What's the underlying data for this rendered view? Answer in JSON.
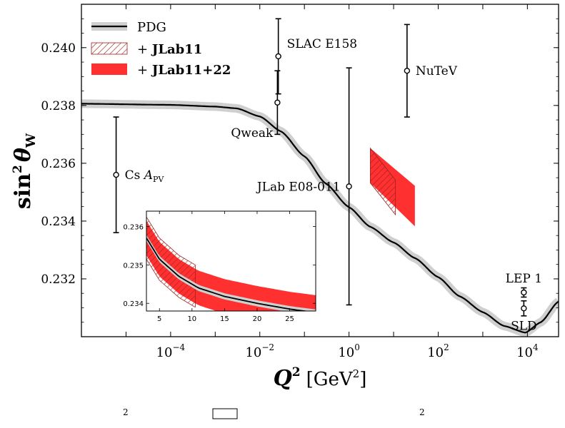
{
  "chart_data": {
    "type": "scatter",
    "title": "",
    "x_scale": "log",
    "x_range": [
      1e-06,
      50000
    ],
    "y_range": [
      0.23,
      0.2415
    ],
    "xlabel": {
      "main": "Q",
      "sup": "2",
      "unit": "[GeV",
      "unit_sup": "2",
      "unit_close": "]"
    },
    "ylabel": {
      "main": "sin",
      "sup": "2",
      "sym": "θ",
      "sub": "W"
    },
    "x_ticks": [
      {
        "value": 0.0001,
        "base": "10",
        "exp": "−4"
      },
      {
        "value": 0.01,
        "base": "10",
        "exp": "−2"
      },
      {
        "value": 1,
        "base": "10",
        "exp": "0"
      },
      {
        "value": 100,
        "base": "10",
        "exp": "2"
      },
      {
        "value": 10000,
        "base": "10",
        "exp": "4"
      }
    ],
    "y_ticks": [
      "0.232",
      "0.234",
      "0.236",
      "0.238",
      "0.240"
    ],
    "y_tick_values": [
      0.232,
      0.234,
      0.236,
      0.238,
      0.24
    ],
    "pdg_curve": [
      [
        1e-06,
        0.23806
      ],
      [
        0.0001,
        0.23802
      ],
      [
        0.001,
        0.23796
      ],
      [
        0.003,
        0.2379
      ],
      [
        0.01,
        0.23762
      ],
      [
        0.03,
        0.2371
      ],
      [
        0.1,
        0.23624
      ],
      [
        0.3,
        0.2353
      ],
      [
        1,
        0.23448
      ],
      [
        3,
        0.2338
      ],
      [
        10,
        0.23326
      ],
      [
        30,
        0.23272
      ],
      [
        100,
        0.23206
      ],
      [
        300,
        0.2314
      ],
      [
        1000,
        0.23085
      ],
      [
        3000,
        0.23037
      ],
      [
        9000,
        0.23014
      ],
      [
        20000,
        0.2305
      ],
      [
        50000,
        0.23122
      ]
    ],
    "jlab11_band": {
      "x": [
        3,
        11
      ],
      "y_low": [
        0.23532,
        0.23422
      ],
      "y_high": [
        0.23652,
        0.23542
      ]
    },
    "jlab1122_band": {
      "x": [
        3,
        30
      ],
      "y_low": [
        0.23532,
        0.23382
      ],
      "y_high": [
        0.23652,
        0.23522
      ]
    },
    "measurements": [
      {
        "name": "Cs",
        "name_var": "A",
        "name_sub": "PV",
        "x": 1e-06,
        "y": 0.2356,
        "err_low": 0.002,
        "err_high": 0.002
      },
      {
        "name": "Qweak",
        "x": 0.0248,
        "y": 0.2381,
        "err_low": 0.0011,
        "err_high": 0.0011
      },
      {
        "name": "SLAC E158",
        "x": 0.026,
        "y": 0.2397,
        "err_low": 0.0013,
        "err_high": 0.0013
      },
      {
        "name": "JLab E08-011",
        "x": 1.0,
        "y": 0.2352,
        "err_low": 0.0041,
        "err_high": 0.0041
      },
      {
        "name": "NuTeV",
        "x": 20,
        "y": 0.2392,
        "err_low": 0.0016,
        "err_high": 0.0016
      },
      {
        "name": "LEP 1",
        "x": 8315,
        "y": 0.23153,
        "err_low": 0.00016,
        "err_high": 0.00016
      },
      {
        "name": "SLD",
        "x": 8315,
        "y": 0.23098,
        "err_low": 0.00026,
        "err_high": 0.00026
      }
    ],
    "legend": {
      "position": "top-left",
      "entries": [
        {
          "label": "PDG"
        },
        {
          "label_pre": "+ ",
          "label": "JLab11"
        },
        {
          "label_pre": "+ ",
          "label": "JLab11+22"
        }
      ]
    },
    "inset": {
      "x_range": [
        3,
        29
      ],
      "y_range": [
        0.2338,
        0.2364
      ],
      "x_ticks": [
        "5",
        "10",
        "15",
        "20",
        "25"
      ],
      "x_tick_values": [
        5,
        10,
        15,
        20,
        25
      ],
      "y_ticks": [
        "0.234",
        "0.235",
        "0.236"
      ],
      "y_tick_values": [
        0.234,
        0.235,
        0.236
      ],
      "pdg_curve": [
        [
          3,
          0.2357
        ],
        [
          5,
          0.23515
        ],
        [
          8,
          0.2347
        ],
        [
          11,
          0.2344
        ],
        [
          15,
          0.23418
        ],
        [
          20,
          0.234
        ],
        [
          25,
          0.23385
        ],
        [
          29,
          0.23376
        ]
      ],
      "pdg_halfwidth": 8e-05,
      "jlab11": {
        "x": [
          3,
          10.5
        ],
        "halfwidth": 0.00055
      },
      "jlab1122": {
        "x": [
          3,
          29
        ],
        "halfwidth": 0.00045
      }
    },
    "colors": {
      "pdg_line": "#000000",
      "pdg_band": "#cfcfcf",
      "jlab1122": "#ff3030",
      "jlab11_hatch": "#a02020"
    }
  },
  "caption": {
    "text": "²  ·  ▭  ·  ²"
  }
}
